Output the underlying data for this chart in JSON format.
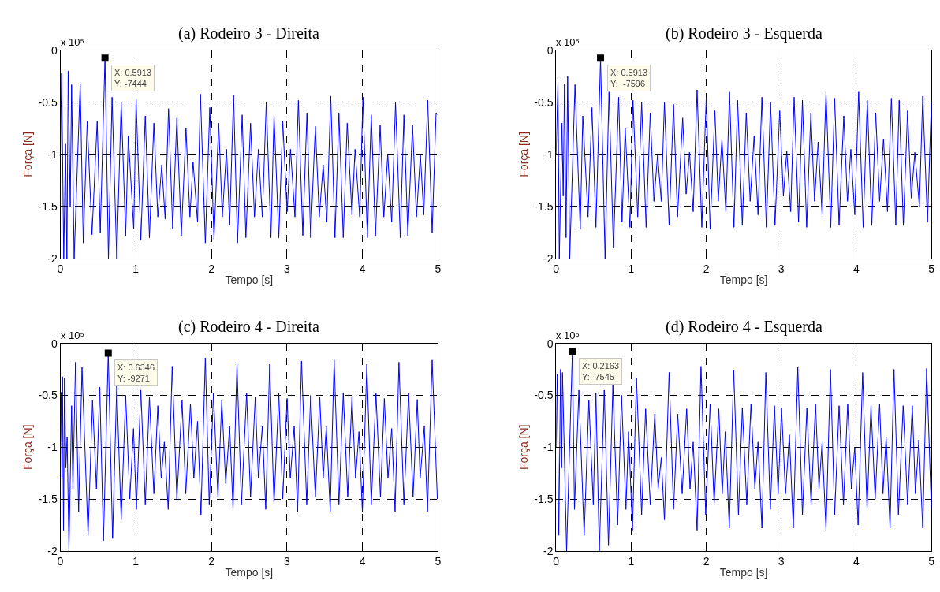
{
  "chart_data": [
    {
      "type": "line",
      "title": "(a) Rodeiro 3 - Direita",
      "xlabel": "Tempo [s]",
      "ylabel": "Força [N]",
      "xlim": [
        0,
        5
      ],
      "xticks": [
        0,
        1,
        2,
        3,
        4,
        5
      ],
      "ylim": [
        -2,
        0
      ],
      "yticks": [
        -2,
        -1.5,
        -1,
        -0.5,
        0
      ],
      "grid": true,
      "annotations": [
        "x 10⁵",
        {
          "text": "X: 0.5913\nY: -7444",
          "x": 0.5913,
          "y": -0.07444
        }
      ],
      "series": [
        {
          "color": "#0000ff",
          "x": [
            0.0,
            0.017,
            0.045,
            0.069,
            0.087,
            0.104,
            0.131,
            0.149,
            0.183,
            0.263,
            0.304,
            0.356,
            0.419,
            0.488,
            0.529,
            0.5913,
            0.637,
            0.685,
            0.747,
            0.806,
            0.865,
            0.9,
            0.972,
            1.003,
            1.066,
            1.125,
            1.18,
            1.239,
            1.291,
            1.343,
            1.388,
            1.433,
            1.488,
            1.543,
            1.602,
            1.664,
            1.716,
            1.758,
            1.817,
            1.855,
            1.92,
            1.979,
            2.035,
            2.097,
            2.145,
            2.201,
            2.242,
            2.294,
            2.346,
            2.408,
            2.457,
            2.519,
            2.571,
            2.623,
            2.675,
            2.727,
            2.789,
            2.83,
            2.893,
            2.945,
            3.003,
            3.048,
            3.107,
            3.152,
            3.211,
            3.266,
            3.315,
            3.377,
            3.429,
            3.481,
            3.529,
            3.581,
            3.637,
            3.689,
            3.747,
            3.799,
            3.862,
            3.903,
            3.965,
            4.007,
            4.066,
            4.118,
            4.173,
            4.235,
            4.284,
            4.336,
            4.388,
            4.439,
            4.502,
            4.55,
            4.602,
            4.664,
            4.716,
            4.768,
            4.813,
            4.865,
            4.924,
            4.976,
            5.0
          ],
          "values": [
            -1.0,
            -0.22,
            -2.0,
            -0.9,
            -2.0,
            -0.2,
            -1.5,
            -0.33,
            -2.0,
            -0.32,
            -1.85,
            -0.68,
            -1.77,
            -0.68,
            -1.75,
            -0.07,
            -2.0,
            -0.45,
            -2.0,
            -0.5,
            -1.78,
            -0.82,
            -1.72,
            -0.47,
            -1.82,
            -0.63,
            -1.8,
            -0.7,
            -1.6,
            -1.1,
            -1.62,
            -0.56,
            -1.72,
            -0.65,
            -1.78,
            -0.75,
            -1.6,
            -1.07,
            -1.65,
            -0.42,
            -1.85,
            -0.55,
            -1.82,
            -0.7,
            -1.6,
            -0.95,
            -1.68,
            -0.43,
            -1.85,
            -0.62,
            -1.8,
            -0.7,
            -1.6,
            -0.95,
            -1.6,
            -0.5,
            -1.8,
            -0.62,
            -1.8,
            -0.68,
            -1.55,
            -0.95,
            -1.6,
            -0.48,
            -1.78,
            -0.6,
            -1.8,
            -0.73,
            -1.6,
            -1.1,
            -1.65,
            -0.44,
            -1.8,
            -0.6,
            -1.8,
            -0.7,
            -1.58,
            -0.95,
            -1.6,
            -0.45,
            -1.8,
            -0.62,
            -1.78,
            -0.72,
            -1.6,
            -1.0,
            -1.65,
            -0.5,
            -1.8,
            -0.62,
            -1.78,
            -0.72,
            -1.6,
            -1.0,
            -1.58,
            -0.48,
            -1.75,
            -0.6,
            -0.62
          ]
        }
      ]
    },
    {
      "type": "line",
      "title": "(b) Rodeiro 3 - Esquerda",
      "xlabel": "Tempo [s]",
      "ylabel": "Força [N]",
      "xlim": [
        0,
        5
      ],
      "xticks": [
        0,
        1,
        2,
        3,
        4,
        5
      ],
      "ylim": [
        -2,
        0
      ],
      "yticks": [
        -2,
        -1.5,
        -1,
        -0.5,
        0
      ],
      "grid": true,
      "annotations": [
        "x 10⁵",
        {
          "text": "X: 0.5913\nY:  -7596",
          "x": 0.5913,
          "y": -0.07596
        }
      ],
      "series": [
        {
          "color": "#0000ff",
          "x": [
            0.0,
            0.024,
            0.042,
            0.077,
            0.094,
            0.111,
            0.132,
            0.153,
            0.181,
            0.251,
            0.321,
            0.355,
            0.425,
            0.477,
            0.53,
            0.5913,
            0.652,
            0.704,
            0.763,
            0.833,
            0.878,
            0.92,
            0.983,
            1.024,
            1.087,
            1.139,
            1.199,
            1.254,
            1.303,
            1.352,
            1.401,
            1.443,
            1.505,
            1.564,
            1.617,
            1.686,
            1.732,
            1.777,
            1.826,
            1.878,
            1.941,
            2.0,
            2.052,
            2.115,
            2.16,
            2.209,
            2.261,
            2.31,
            2.369,
            2.418,
            2.481,
            2.533,
            2.585,
            2.638,
            2.69,
            2.742,
            2.801,
            2.857,
            2.916,
            2.979,
            3.028,
            3.073,
            3.125,
            3.171,
            3.23,
            3.282,
            3.338,
            3.394,
            3.443,
            3.491,
            3.544,
            3.596,
            3.659,
            3.711,
            3.77,
            3.833,
            3.882,
            3.927,
            3.979,
            4.031,
            4.091,
            4.146,
            4.206,
            4.258,
            4.31,
            4.362,
            4.415,
            4.467,
            4.526,
            4.571,
            4.627,
            4.683,
            4.732,
            4.78,
            4.84,
            4.885,
            4.948,
            5.0
          ],
          "values": [
            -1.0,
            -0.3,
            -2.0,
            -0.7,
            -1.4,
            -0.32,
            -1.8,
            -0.25,
            -2.0,
            -0.33,
            -1.72,
            -0.63,
            -1.6,
            -0.55,
            -1.7,
            -0.08,
            -2.0,
            -0.4,
            -1.9,
            -0.45,
            -1.65,
            -0.75,
            -1.7,
            -0.48,
            -1.6,
            -0.5,
            -1.7,
            -0.6,
            -1.45,
            -1.0,
            -1.45,
            -0.5,
            -1.68,
            -0.52,
            -1.6,
            -0.65,
            -1.38,
            -0.98,
            -1.55,
            -0.38,
            -1.7,
            -0.45,
            -1.72,
            -0.58,
            -1.45,
            -0.85,
            -1.55,
            -0.4,
            -1.7,
            -0.48,
            -1.68,
            -0.6,
            -1.45,
            -0.82,
            -1.58,
            -0.45,
            -1.7,
            -0.5,
            -1.68,
            -0.58,
            -1.4,
            -0.97,
            -1.55,
            -0.45,
            -1.65,
            -0.48,
            -1.7,
            -0.6,
            -1.45,
            -0.88,
            -1.58,
            -0.4,
            -1.7,
            -0.46,
            -1.68,
            -0.63,
            -1.45,
            -0.95,
            -1.58,
            -0.4,
            -1.7,
            -0.48,
            -1.68,
            -0.6,
            -1.45,
            -0.85,
            -1.55,
            -0.46,
            -1.68,
            -0.48,
            -1.68,
            -0.58,
            -1.42,
            -0.98,
            -1.5,
            -0.44,
            -1.65,
            -0.5
          ]
        }
      ]
    },
    {
      "type": "line",
      "title": "(c) Rodeiro 4 - Direita",
      "xlabel": "Tempo [s]",
      "ylabel": "Força [N]",
      "xlim": [
        0,
        5
      ],
      "xticks": [
        0,
        1,
        2,
        3,
        4,
        5
      ],
      "ylim": [
        -2,
        0
      ],
      "yticks": [
        -2,
        -1.5,
        -1,
        -0.5,
        0
      ],
      "grid": true,
      "annotations": [
        "x 10⁵",
        {
          "text": "X: 0.6346\nY: -9271",
          "x": 0.6346,
          "y": -0.09271
        }
      ],
      "series": [
        {
          "color": "#0000ff",
          "x": [
            0.0,
            0.01,
            0.021,
            0.028,
            0.042,
            0.055,
            0.073,
            0.09,
            0.114,
            0.149,
            0.166,
            0.201,
            0.242,
            0.287,
            0.367,
            0.426,
            0.478,
            0.522,
            0.571,
            0.6346,
            0.692,
            0.747,
            0.806,
            0.865,
            0.92,
            0.969,
            1.007,
            1.066,
            1.125,
            1.18,
            1.239,
            1.291,
            1.336,
            1.377,
            1.429,
            1.481,
            1.543,
            1.612,
            1.661,
            1.723,
            1.768,
            1.817,
            1.862,
            1.92,
            1.972,
            2.028,
            2.087,
            2.138,
            2.19,
            2.242,
            2.287,
            2.339,
            2.398,
            2.467,
            2.519,
            2.581,
            2.623,
            2.675,
            2.72,
            2.772,
            2.83,
            2.893,
            2.945,
            3.003,
            3.045,
            3.097,
            3.142,
            3.194,
            3.263,
            3.315,
            3.377,
            3.436,
            3.481,
            3.522,
            3.574,
            3.626,
            3.689,
            3.747,
            3.806,
            3.862,
            3.91,
            3.955,
            4.0,
            4.059,
            4.118,
            4.18,
            4.239,
            4.291,
            4.339,
            4.388,
            4.433,
            4.484,
            4.55,
            4.612,
            4.671,
            4.727,
            4.765,
            4.82,
            4.862,
            4.924,
            4.993
          ],
          "values": [
            -1.0,
            -0.47,
            -1.3,
            -0.32,
            -1.8,
            -0.33,
            -1.2,
            -0.9,
            -2.0,
            -0.6,
            -1.4,
            -0.18,
            -1.62,
            -0.23,
            -1.85,
            -0.55,
            -1.4,
            -0.42,
            -1.9,
            -0.09,
            -1.88,
            -0.4,
            -1.7,
            -0.5,
            -1.5,
            -0.82,
            -1.6,
            -0.45,
            -1.55,
            -0.52,
            -1.45,
            -0.6,
            -1.3,
            -0.95,
            -1.6,
            -0.22,
            -1.5,
            -0.55,
            -1.45,
            -0.58,
            -1.3,
            -0.75,
            -1.65,
            -0.14,
            -1.55,
            -0.48,
            -1.48,
            -0.55,
            -1.35,
            -0.8,
            -1.6,
            -0.2,
            -1.55,
            -0.48,
            -1.48,
            -0.52,
            -1.3,
            -0.8,
            -1.6,
            -0.2,
            -1.55,
            -0.48,
            -1.5,
            -0.53,
            -1.3,
            -0.8,
            -1.62,
            -0.17,
            -1.55,
            -0.5,
            -1.48,
            -0.52,
            -1.3,
            -0.8,
            -1.62,
            -0.16,
            -1.55,
            -0.48,
            -1.48,
            -0.52,
            -1.3,
            -0.85,
            -1.62,
            -0.2,
            -1.55,
            -0.48,
            -1.48,
            -0.53,
            -1.3,
            -0.82,
            -1.62,
            -0.18,
            -1.55,
            -0.48,
            -1.48,
            -0.54,
            -1.3,
            -0.8,
            -1.62,
            -0.16,
            -1.5
          ]
        }
      ]
    },
    {
      "type": "line",
      "title": "(d) Rodeiro 4 - Esquerda",
      "xlabel": "Tempo [s]",
      "ylabel": "Força [N]",
      "xlim": [
        0,
        5
      ],
      "xticks": [
        0,
        1,
        2,
        3,
        4,
        5
      ],
      "ylim": [
        -2,
        0
      ],
      "yticks": [
        -2,
        -1.5,
        -1,
        -0.5,
        0
      ],
      "grid": true,
      "annotations": [
        "x 10⁵",
        {
          "text": "X: 0.2163\nY: -7545",
          "x": 0.2163,
          "y": -0.07545
        }
      ],
      "series": [
        {
          "color": "#0000ff",
          "x": [
            0.0,
            0.014,
            0.035,
            0.059,
            0.073,
            0.084,
            0.139,
            0.2163,
            0.244,
            0.303,
            0.373,
            0.436,
            0.495,
            0.53,
            0.575,
            0.641,
            0.697,
            0.756,
            0.819,
            0.871,
            0.93,
            0.965,
            1.017,
            1.07,
            1.139,
            1.192,
            1.254,
            1.314,
            1.359,
            1.401,
            1.443,
            1.505,
            1.564,
            1.62,
            1.679,
            1.739,
            1.784,
            1.826,
            1.878,
            1.93,
            1.993,
            2.052,
            2.105,
            2.167,
            2.213,
            2.254,
            2.307,
            2.366,
            2.429,
            2.481,
            2.54,
            2.596,
            2.648,
            2.69,
            2.742,
            2.794,
            2.854,
            2.909,
            2.958,
            3.003,
            3.056,
            3.108,
            3.16,
            3.22,
            3.282,
            3.341,
            3.397,
            3.456,
            3.502,
            3.544,
            3.596,
            3.655,
            3.711,
            3.77,
            3.829,
            3.885,
            3.934,
            3.979,
            4.024,
            4.084,
            4.143,
            4.195,
            4.251,
            4.31,
            4.355,
            4.397,
            4.449,
            4.502,
            4.561,
            4.624,
            4.683,
            4.746,
            4.787,
            4.833,
            4.885,
            4.937,
            5.0
          ],
          "values": [
            -1.0,
            -0.3,
            -1.85,
            -0.25,
            -1.2,
            -0.28,
            -2.0,
            -0.08,
            -1.6,
            -0.45,
            -1.85,
            -0.55,
            -1.55,
            -0.48,
            -2.0,
            -0.45,
            -1.95,
            -0.4,
            -1.75,
            -0.5,
            -1.6,
            -0.85,
            -1.8,
            -0.33,
            -1.65,
            -0.63,
            -1.55,
            -0.68,
            -1.4,
            -1.1,
            -1.7,
            -0.28,
            -1.6,
            -0.68,
            -1.45,
            -0.63,
            -1.4,
            -0.95,
            -1.8,
            -0.22,
            -1.65,
            -0.58,
            -1.55,
            -0.63,
            -1.45,
            -0.85,
            -1.78,
            -0.26,
            -1.65,
            -0.62,
            -1.55,
            -0.58,
            -1.4,
            -0.95,
            -1.78,
            -0.28,
            -1.6,
            -0.6,
            -1.45,
            -0.62,
            -1.45,
            -0.88,
            -1.78,
            -0.23,
            -1.65,
            -0.62,
            -1.55,
            -0.58,
            -1.4,
            -0.95,
            -1.8,
            -0.25,
            -1.65,
            -0.6,
            -1.55,
            -0.58,
            -1.4,
            -1.0,
            -1.75,
            -0.28,
            -1.6,
            -0.6,
            -1.5,
            -0.58,
            -1.45,
            -0.9,
            -1.78,
            -0.25,
            -1.65,
            -0.6,
            -1.55,
            -0.6,
            -1.45,
            -0.93,
            -1.78,
            -0.24,
            -1.6
          ]
        }
      ]
    }
  ]
}
